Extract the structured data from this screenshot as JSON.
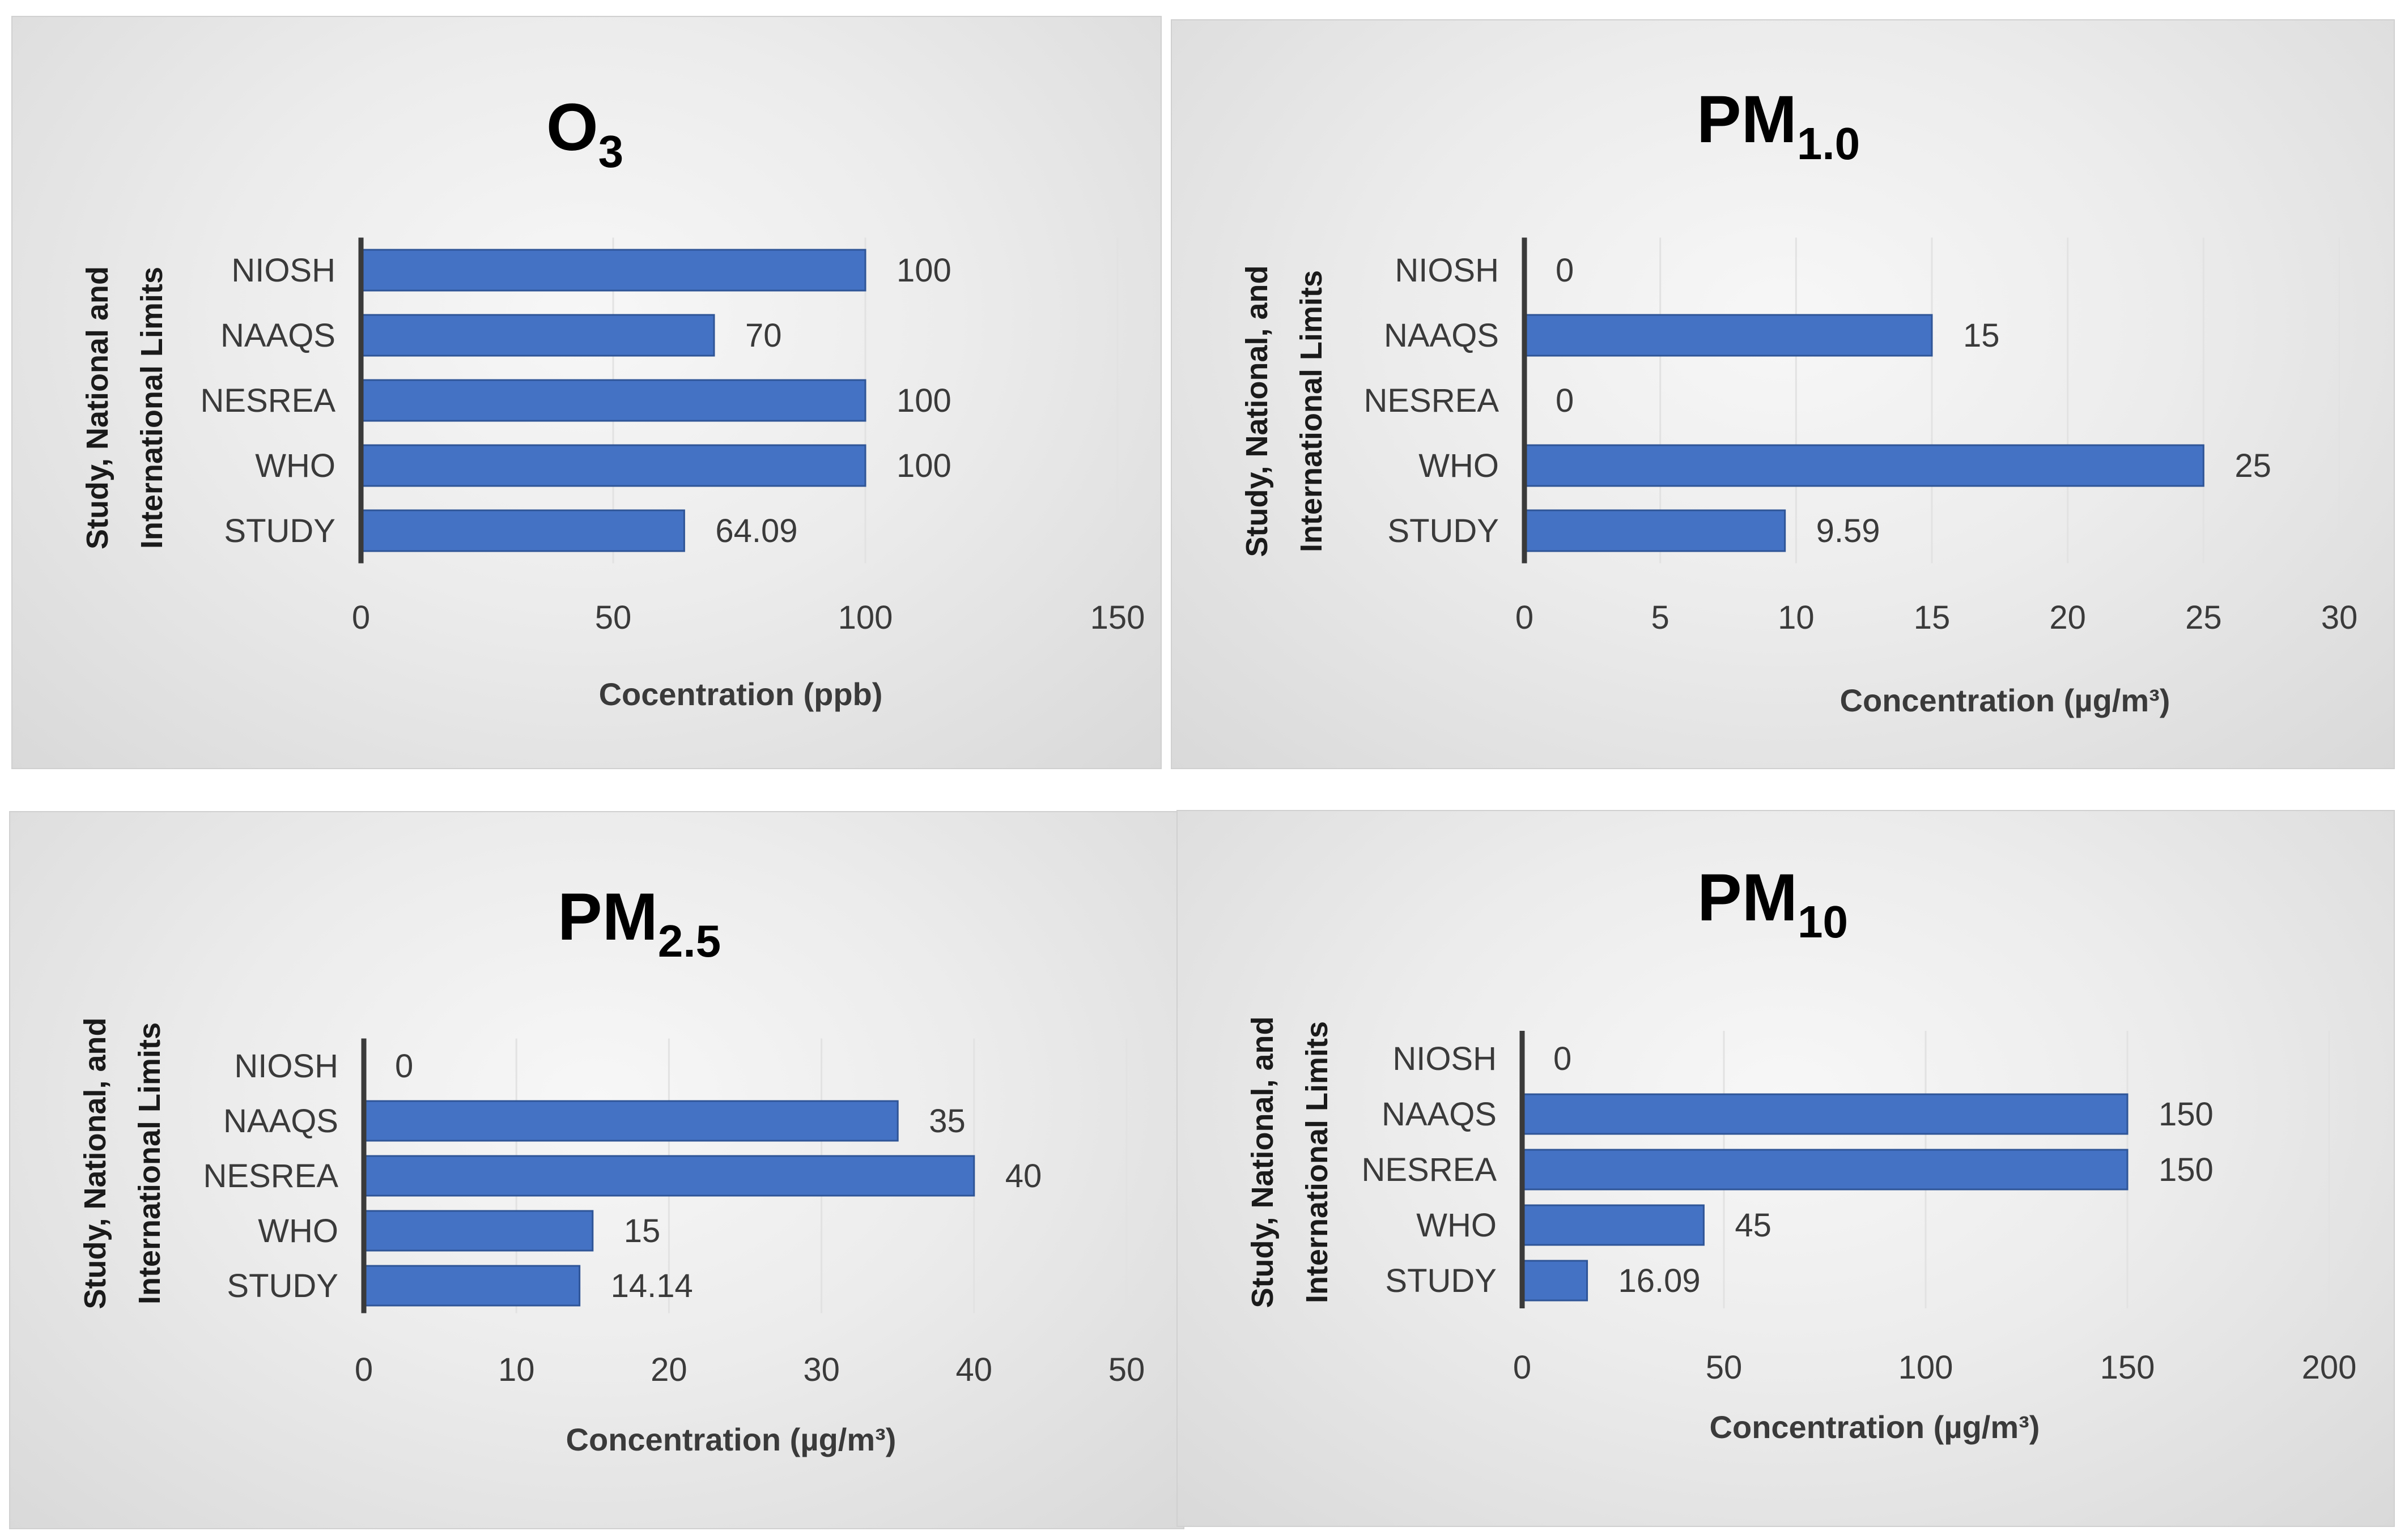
{
  "chart_data": [
    {
      "type": "bar",
      "orientation": "horizontal",
      "title": "O",
      "title_subscript": "3",
      "categories": [
        "NIOSH",
        "NAAQS",
        "NESREA",
        "WHO",
        "STUDY"
      ],
      "values": [
        100,
        70,
        100,
        100,
        64.09
      ],
      "value_labels": [
        "100",
        "70",
        "100",
        "100",
        "64.09"
      ],
      "xlim": [
        0,
        150
      ],
      "xticks": [
        0,
        50,
        100,
        150
      ],
      "xlabel": "Cocentration (ppb)",
      "ylabel_lines": [
        "Study, National and",
        "International Limits"
      ],
      "bar_color": "#4472c4",
      "grid": true
    },
    {
      "type": "bar",
      "orientation": "horizontal",
      "title": "PM",
      "title_subscript": "1.0",
      "categories": [
        "NIOSH",
        "NAAQS",
        "NESREA",
        "WHO",
        "STUDY"
      ],
      "values": [
        0,
        15,
        0,
        25,
        9.59
      ],
      "value_labels": [
        "0",
        "15",
        "0",
        "25",
        "9.59"
      ],
      "xlim": [
        0,
        30
      ],
      "xticks": [
        0,
        5,
        10,
        15,
        20,
        25,
        30
      ],
      "xlabel": "Concentration (µg/m³)",
      "ylabel_lines": [
        "Study, National, and",
        "International Limits"
      ],
      "bar_color": "#4472c4",
      "grid": true
    },
    {
      "type": "bar",
      "orientation": "horizontal",
      "title": "PM",
      "title_subscript": "2.5",
      "categories": [
        "NIOSH",
        "NAAQS",
        "NESREA",
        "WHO",
        "STUDY"
      ],
      "values": [
        0,
        35,
        40,
        15,
        14.14
      ],
      "value_labels": [
        "0",
        "35",
        "40",
        "15",
        "14.14"
      ],
      "xlim": [
        0,
        50
      ],
      "xticks": [
        0,
        10,
        20,
        30,
        40,
        50
      ],
      "xlabel": "Concentration (µg/m³)",
      "ylabel_lines": [
        "Study, National, and",
        "International Limits"
      ],
      "bar_color": "#4472c4",
      "grid": true
    },
    {
      "type": "bar",
      "orientation": "horizontal",
      "title": "PM",
      "title_subscript": "10",
      "categories": [
        "NIOSH",
        "NAAQS",
        "NESREA",
        "WHO",
        "STUDY"
      ],
      "values": [
        0,
        150,
        150,
        45,
        16.09
      ],
      "value_labels": [
        "0",
        "150",
        "150",
        "45",
        "16.09"
      ],
      "xlim": [
        0,
        200
      ],
      "xticks": [
        0,
        50,
        100,
        150,
        200
      ],
      "xlabel": "Concentration (µg/m³)",
      "ylabel_lines": [
        "Study, National, and",
        "International Limits"
      ],
      "bar_color": "#4472c4",
      "grid": true
    }
  ]
}
